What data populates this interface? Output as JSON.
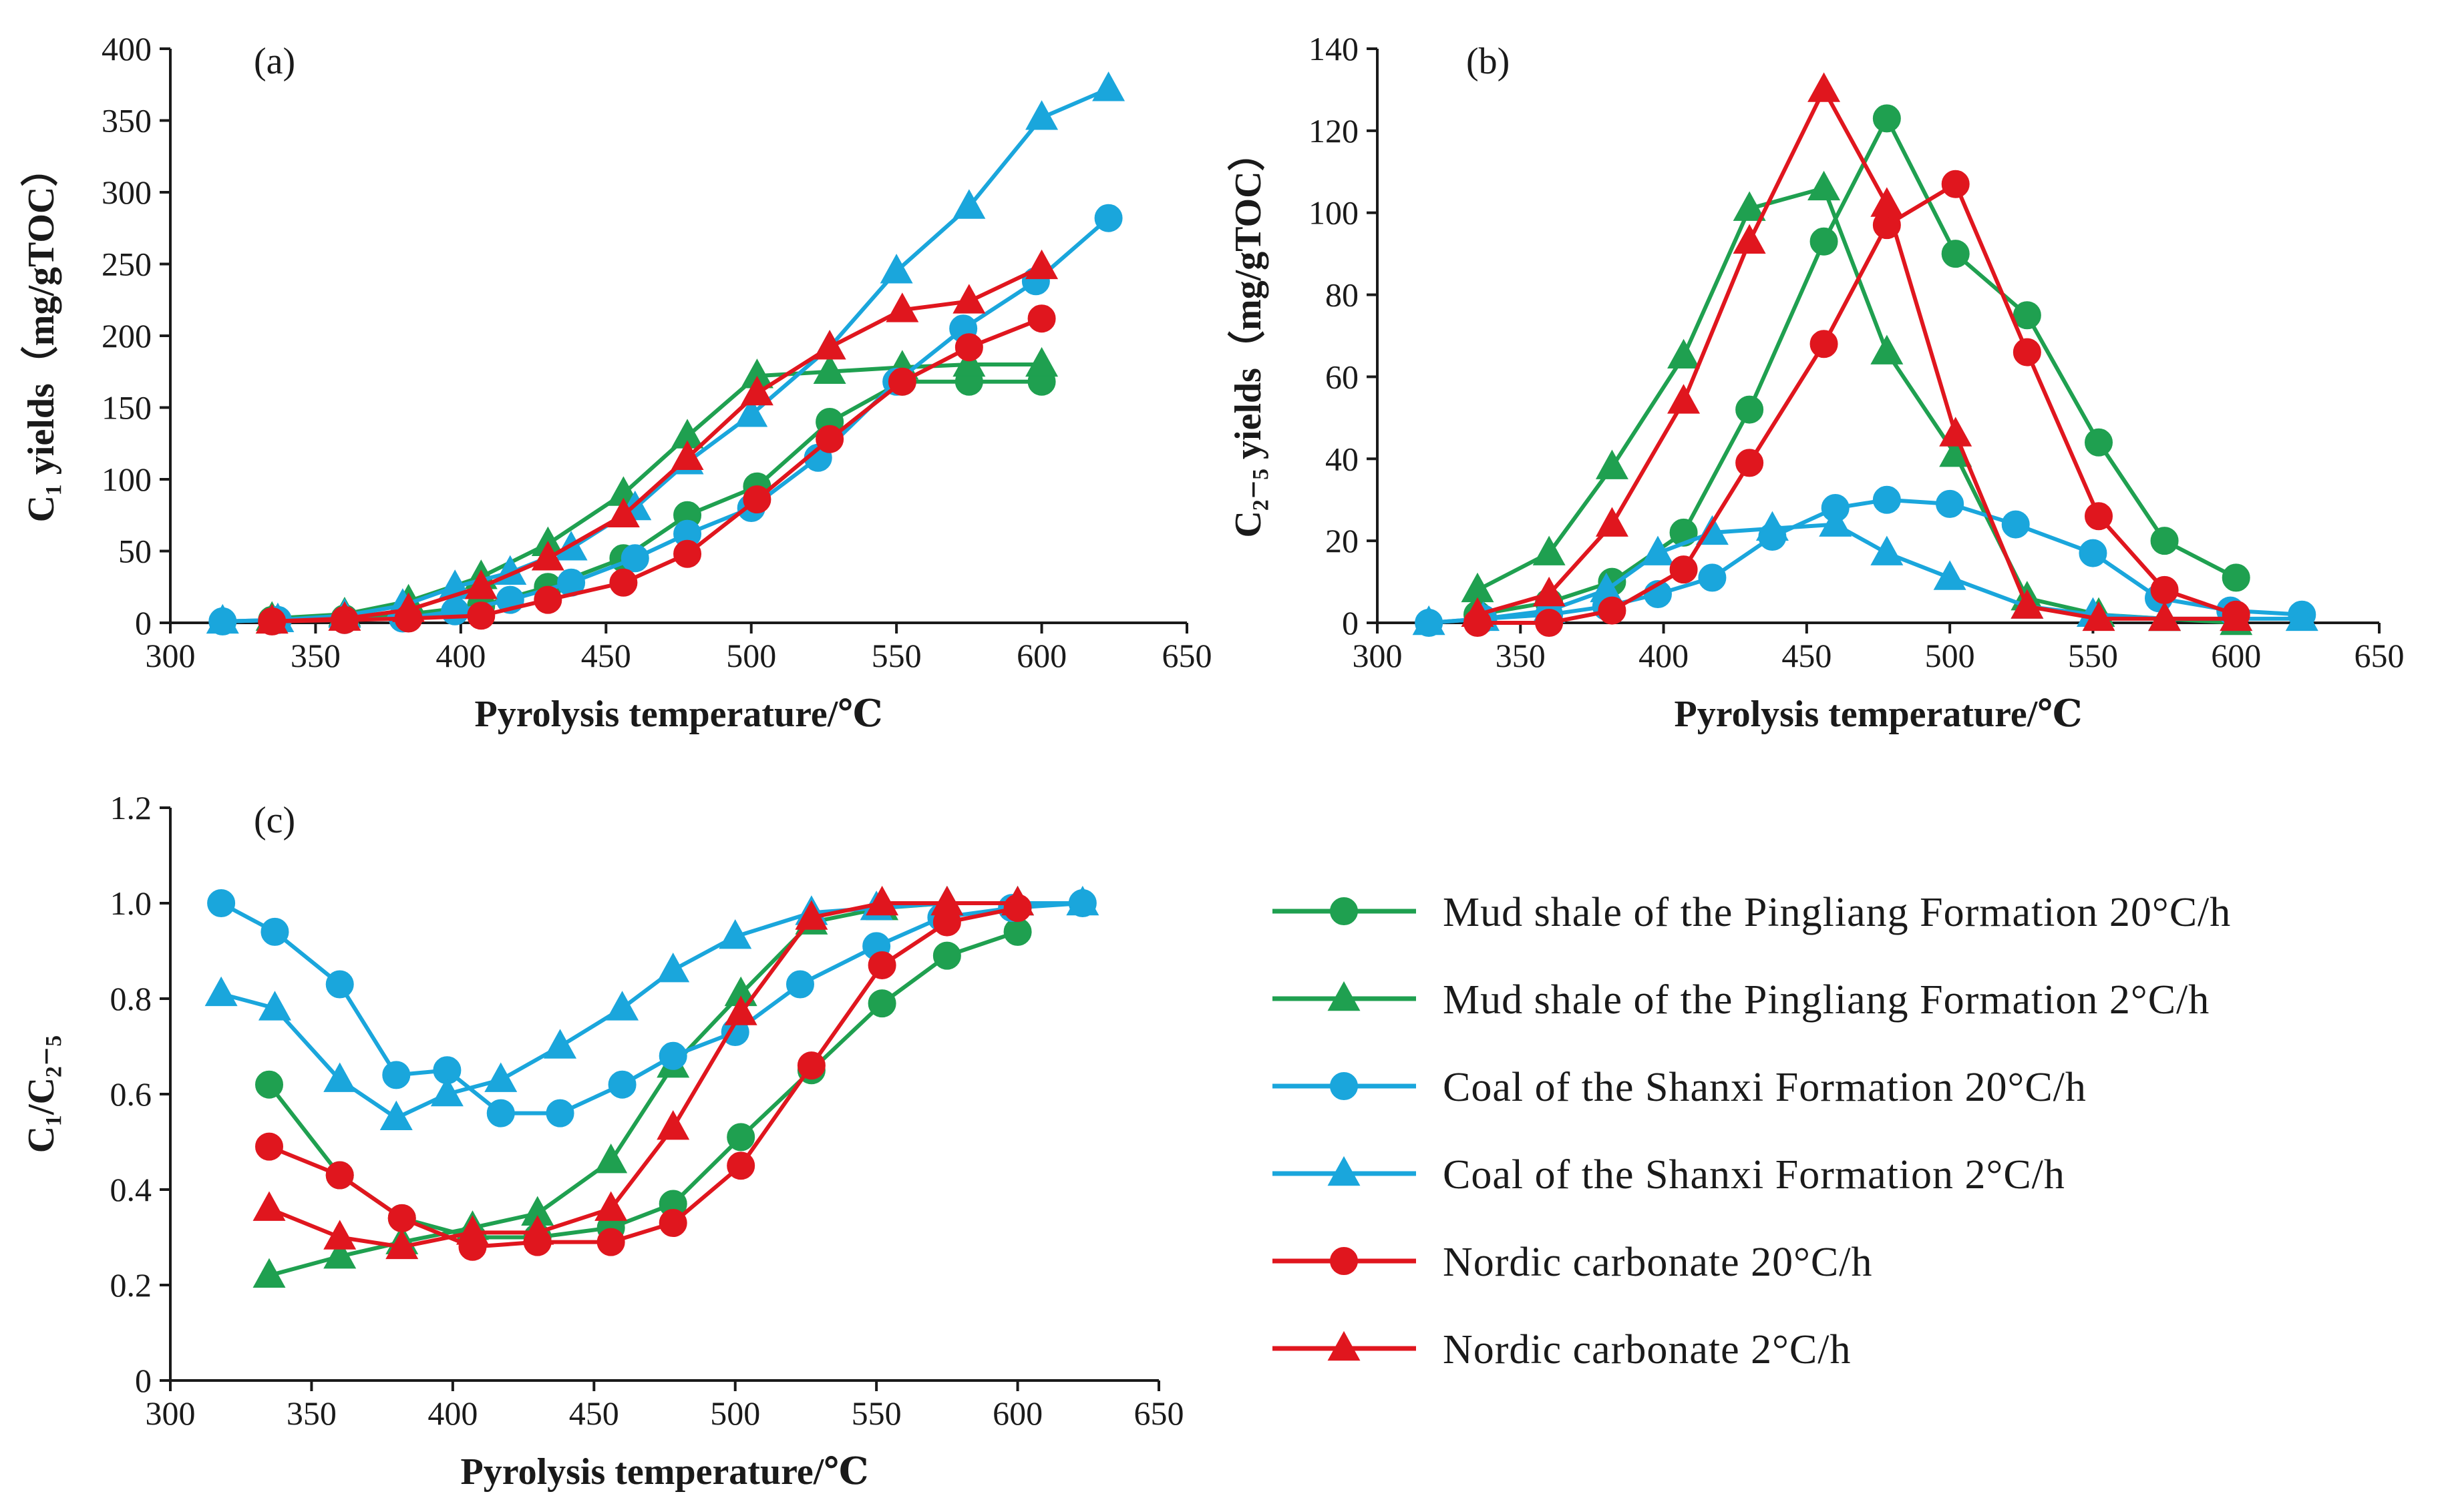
{
  "legend": [
    {
      "key": "pl20",
      "label": "Mud shale of the Pingliang Formation 20°C/h",
      "color": "#1fa050",
      "marker": "circle"
    },
    {
      "key": "pl2",
      "label": "Mud shale of the Pingliang Formation 2°C/h",
      "color": "#1fa050",
      "marker": "triangle"
    },
    {
      "key": "sx20",
      "label": "Coal of the Shanxi Formation 20°C/h",
      "color": "#1aa6dc",
      "marker": "circle"
    },
    {
      "key": "sx2",
      "label": "Coal of the Shanxi Formation  2°C/h",
      "color": "#1aa6dc",
      "marker": "triangle"
    },
    {
      "key": "nc20",
      "label": "Nordic carbonate 20°C/h",
      "color": "#e0161e",
      "marker": "circle"
    },
    {
      "key": "nc2",
      "label": "Nordic carbonate 2°C/h",
      "color": "#e0161e",
      "marker": "triangle"
    }
  ],
  "chart_data": [
    {
      "id": "a",
      "type": "line",
      "panel_label": "(a)",
      "xlabel": "Pyrolysis temperature/℃",
      "ylabel": "C₁ yields（mg/gTOC）",
      "xlim": [
        300,
        650
      ],
      "ylim": [
        0,
        400
      ],
      "xticks": [
        300,
        350,
        400,
        450,
        500,
        550,
        600,
        650
      ],
      "yticks": [
        0,
        50,
        100,
        150,
        200,
        250,
        300,
        350,
        400
      ],
      "series": [
        {
          "key": "pl20",
          "name": "Mud shale of the Pingliang Formation 20°C/h",
          "x": [
            335,
            360,
            382,
            407,
            430,
            456,
            478,
            502,
            527,
            552,
            575,
            600
          ],
          "y": [
            2,
            3,
            6,
            12,
            25,
            45,
            75,
            95,
            140,
            168,
            168,
            168
          ]
        },
        {
          "key": "pl2",
          "name": "Mud shale of the Pingliang Formation 2°C/h",
          "x": [
            335,
            360,
            382,
            407,
            430,
            456,
            478,
            502,
            527,
            552,
            575,
            600
          ],
          "y": [
            3,
            6,
            15,
            32,
            55,
            90,
            130,
            172,
            175,
            178,
            180,
            180
          ]
        },
        {
          "key": "sx20",
          "name": "Coal of the Shanxi Formation 20°C/h",
          "x": [
            318,
            337,
            360,
            380,
            398,
            417,
            438,
            460,
            478,
            500,
            523,
            550,
            573,
            598,
            623
          ],
          "y": [
            1,
            2,
            2,
            3,
            8,
            16,
            28,
            45,
            62,
            80,
            115,
            168,
            205,
            238,
            282
          ]
        },
        {
          "key": "sx2",
          "name": "Coal of the Shanxi Formation  2°C/h",
          "x": [
            318,
            337,
            360,
            380,
            398,
            417,
            438,
            460,
            478,
            500,
            527,
            550,
            575,
            600,
            623
          ],
          "y": [
            1,
            2,
            5,
            12,
            25,
            35,
            52,
            80,
            112,
            145,
            192,
            245,
            290,
            352,
            372
          ]
        },
        {
          "key": "nc20",
          "name": "Nordic carbonate 20°C/h",
          "x": [
            335,
            360,
            382,
            407,
            430,
            456,
            478,
            502,
            527,
            552,
            575,
            600
          ],
          "y": [
            1,
            2,
            3,
            5,
            16,
            28,
            48,
            86,
            128,
            168,
            192,
            212
          ]
        },
        {
          "key": "nc2",
          "name": "Nordic carbonate 2°C/h",
          "x": [
            335,
            360,
            382,
            407,
            430,
            456,
            478,
            502,
            527,
            552,
            575,
            600
          ],
          "y": [
            1,
            3,
            9,
            25,
            45,
            75,
            115,
            160,
            192,
            218,
            224,
            248
          ]
        }
      ]
    },
    {
      "id": "b",
      "type": "line",
      "panel_label": "(b)",
      "xlabel": "Pyrolysis temperature/℃",
      "ylabel": "C₂₋₅ yields（mg/gTOC）",
      "xlim": [
        300,
        650
      ],
      "ylim": [
        0,
        140
      ],
      "xticks": [
        300,
        350,
        400,
        450,
        500,
        550,
        600,
        650
      ],
      "yticks": [
        0,
        20,
        40,
        60,
        80,
        100,
        120,
        140
      ],
      "series": [
        {
          "key": "pl20",
          "name": "Mud shale of the Pingliang Formation 20°C/h",
          "x": [
            335,
            360,
            382,
            407,
            430,
            456,
            478,
            502,
            527,
            552,
            575,
            600
          ],
          "y": [
            2,
            5,
            10,
            22,
            52,
            93,
            123,
            90,
            75,
            44,
            20,
            11
          ]
        },
        {
          "key": "pl2",
          "name": "Mud shale of the Pingliang Formation 2°C/h",
          "x": [
            335,
            360,
            382,
            407,
            430,
            456,
            478,
            502,
            527,
            552,
            575,
            600
          ],
          "y": [
            8,
            17,
            38,
            65,
            101,
            106,
            66,
            41,
            6,
            2,
            1,
            0
          ]
        },
        {
          "key": "sx20",
          "name": "Coal of the Shanxi Formation 20°C/h",
          "x": [
            318,
            337,
            360,
            380,
            398,
            417,
            438,
            460,
            478,
            500,
            523,
            550,
            573,
            598,
            623
          ],
          "y": [
            0,
            1,
            2,
            4,
            7,
            11,
            21,
            28,
            30,
            29,
            24,
            17,
            6,
            3,
            2
          ]
        },
        {
          "key": "sx2",
          "name": "Coal of the Shanxi Formation  2°C/h",
          "x": [
            318,
            337,
            360,
            380,
            398,
            417,
            438,
            460,
            478,
            500,
            527,
            550,
            575,
            600,
            623
          ],
          "y": [
            0,
            1,
            3,
            8,
            17,
            22,
            23,
            24,
            17,
            11,
            4,
            2,
            1,
            1,
            1
          ]
        },
        {
          "key": "nc20",
          "name": "Nordic carbonate 20°C/h",
          "x": [
            335,
            360,
            382,
            407,
            430,
            456,
            478,
            502,
            527,
            552,
            575,
            600
          ],
          "y": [
            0,
            0,
            3,
            13,
            39,
            68,
            97,
            107,
            66,
            26,
            8,
            2
          ]
        },
        {
          "key": "nc2",
          "name": "Nordic carbonate 2°C/h",
          "x": [
            335,
            360,
            382,
            407,
            430,
            456,
            478,
            502,
            527,
            552,
            575,
            600
          ],
          "y": [
            2,
            7,
            24,
            54,
            93,
            130,
            102,
            46,
            4,
            1,
            1,
            1
          ]
        }
      ]
    },
    {
      "id": "c",
      "type": "line",
      "panel_label": "(c)",
      "xlabel": "Pyrolysis temperature/℃",
      "ylabel": "C₁/C₂₋₅",
      "xlim": [
        300,
        650
      ],
      "ylim": [
        0,
        1.2
      ],
      "xticks": [
        300,
        350,
        400,
        450,
        500,
        550,
        600,
        650
      ],
      "yticks": [
        0,
        0.2,
        0.4,
        0.6,
        0.8,
        1.0,
        1.2
      ],
      "ytick_labels": [
        "0",
        "0.2",
        "0.4",
        "0.6",
        "0.8",
        "1.0",
        "1.2"
      ],
      "series": [
        {
          "key": "pl20",
          "name": "Mud shale of the Pingliang Formation 20°C/h",
          "x": [
            335,
            360,
            382,
            407,
            430,
            456,
            478,
            502,
            527,
            552,
            575,
            600
          ],
          "y": [
            0.62,
            0.43,
            0.34,
            0.3,
            0.3,
            0.32,
            0.37,
            0.51,
            0.65,
            0.79,
            0.89,
            0.94
          ]
        },
        {
          "key": "pl2",
          "name": "Mud shale of the Pingliang Formation 2°C/h",
          "x": [
            335,
            360,
            382,
            407,
            430,
            456,
            478,
            502,
            527,
            552,
            575,
            600
          ],
          "y": [
            0.22,
            0.26,
            0.29,
            0.32,
            0.35,
            0.46,
            0.66,
            0.81,
            0.96,
            0.99,
            1.0,
            1.0
          ]
        },
        {
          "key": "sx20",
          "name": "Coal of the Shanxi Formation 20°C/h",
          "x": [
            318,
            337,
            360,
            380,
            398,
            417,
            438,
            460,
            478,
            500,
            523,
            550,
            573,
            598,
            623
          ],
          "y": [
            1.0,
            0.94,
            0.83,
            0.64,
            0.65,
            0.56,
            0.56,
            0.62,
            0.68,
            0.73,
            0.83,
            0.91,
            0.97,
            0.99,
            1.0
          ]
        },
        {
          "key": "sx2",
          "name": "Coal of the Shanxi Formation  2°C/h",
          "x": [
            318,
            337,
            360,
            380,
            398,
            417,
            438,
            460,
            478,
            500,
            527,
            550,
            575,
            600,
            623
          ],
          "y": [
            0.81,
            0.78,
            0.63,
            0.55,
            0.6,
            0.63,
            0.7,
            0.78,
            0.86,
            0.93,
            0.98,
            0.99,
            1.0,
            1.0,
            1.0
          ]
        },
        {
          "key": "nc20",
          "name": "Nordic carbonate 20°C/h",
          "x": [
            335,
            360,
            382,
            407,
            430,
            456,
            478,
            502,
            527,
            552,
            575,
            600
          ],
          "y": [
            0.49,
            0.43,
            0.34,
            0.28,
            0.29,
            0.29,
            0.33,
            0.45,
            0.66,
            0.87,
            0.96,
            0.99
          ]
        },
        {
          "key": "nc2",
          "name": "Nordic carbonate 2°C/h",
          "x": [
            335,
            360,
            382,
            407,
            430,
            456,
            478,
            502,
            527,
            552,
            575,
            600
          ],
          "y": [
            0.36,
            0.3,
            0.28,
            0.31,
            0.31,
            0.36,
            0.53,
            0.77,
            0.97,
            1.0,
            1.0,
            1.0
          ]
        }
      ]
    }
  ]
}
